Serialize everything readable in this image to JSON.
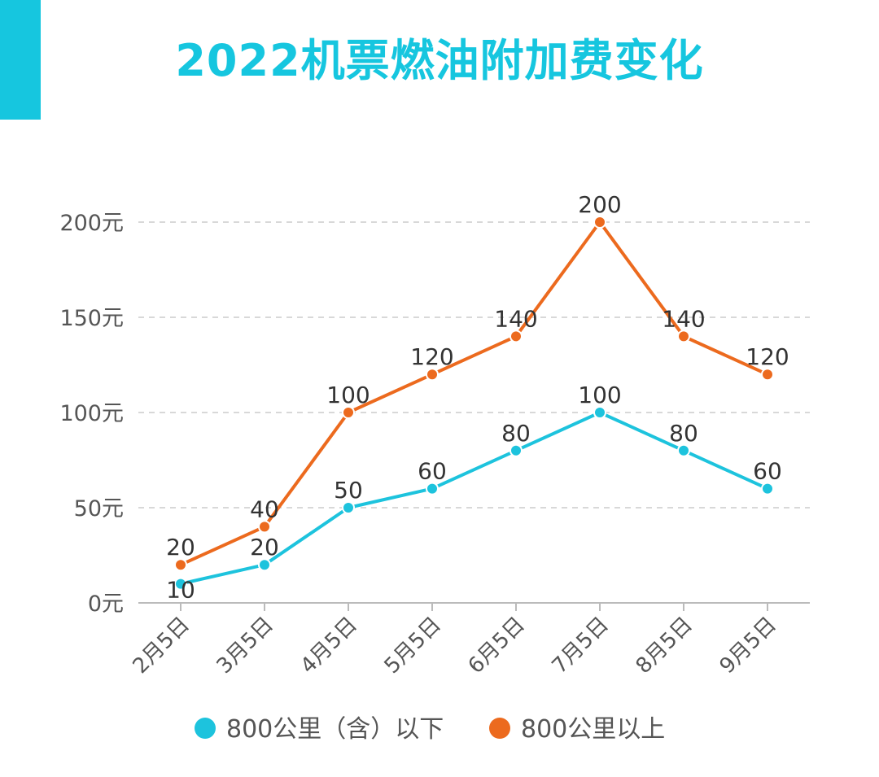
{
  "title": "2022机票燃油附加费变化",
  "colors": {
    "accent": "#16C6DF",
    "title": "#16C6DF",
    "series_below": "#1DC3DD",
    "series_above": "#EC6A1E",
    "axis_text": "#555555",
    "label_text": "#333333",
    "grid": "#CCCCCC",
    "axis_line": "#BBBBBB"
  },
  "chart_data": {
    "type": "line",
    "title": "2022机票燃油附加费变化",
    "categories": [
      "2月5日",
      "3月5日",
      "4月5日",
      "5月5日",
      "6月5日",
      "7月5日",
      "8月5日",
      "9月5日"
    ],
    "series": [
      {
        "name": "800公里（含）以下",
        "values": [
          10,
          20,
          50,
          60,
          80,
          100,
          80,
          60
        ]
      },
      {
        "name": "800公里以上",
        "values": [
          20,
          40,
          100,
          120,
          140,
          200,
          140,
          120
        ]
      }
    ],
    "ylim": [
      0,
      200
    ],
    "yticks": [
      0,
      50,
      100,
      150,
      200
    ],
    "ytick_labels": [
      "0元",
      "50元",
      "100元",
      "150元",
      "200元"
    ],
    "grid": true,
    "legend_position": "bottom",
    "data_labels": true
  }
}
